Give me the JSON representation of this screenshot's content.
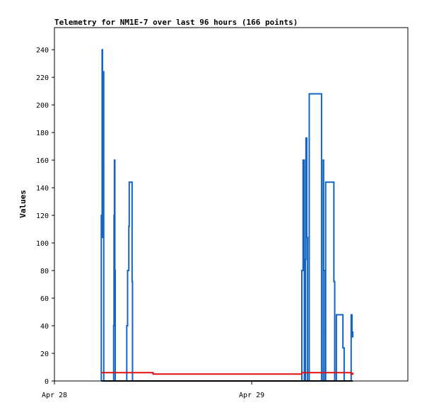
{
  "chart_data": {
    "type": "line",
    "title": "Telemetry for NM1E-7 over last 96 hours (166 points)",
    "xlabel": "",
    "ylabel": "Values",
    "x_ticks": [
      {
        "label": "Apr 28",
        "hours": 0
      },
      {
        "label": "Apr 29",
        "hours": 24
      }
    ],
    "y_ticks": [
      0,
      20,
      40,
      60,
      80,
      100,
      120,
      140,
      160,
      180,
      200,
      220,
      240
    ],
    "xlim_hours": [
      0,
      43
    ],
    "ylim": [
      0,
      256
    ],
    "grid": false,
    "legend": "none",
    "series": [
      {
        "color": "#1565c0",
        "step": true,
        "points": [
          [
            5.7,
            0
          ],
          [
            5.7,
            120
          ],
          [
            5.8,
            240
          ],
          [
            5.85,
            104
          ],
          [
            5.9,
            224
          ],
          [
            6.0,
            0
          ],
          [
            7.2,
            0
          ],
          [
            7.2,
            40
          ],
          [
            7.25,
            120
          ],
          [
            7.3,
            160
          ],
          [
            7.35,
            80
          ],
          [
            7.4,
            0
          ],
          [
            8.8,
            0
          ],
          [
            8.8,
            40
          ],
          [
            8.9,
            80
          ],
          [
            9.05,
            112
          ],
          [
            9.1,
            144
          ],
          [
            9.45,
            72
          ],
          [
            9.5,
            0
          ],
          [
            30.1,
            0
          ],
          [
            30.1,
            80
          ],
          [
            30.25,
            160
          ],
          [
            30.4,
            0
          ],
          [
            30.55,
            88
          ],
          [
            30.6,
            176
          ],
          [
            30.7,
            104
          ],
          [
            30.8,
            0
          ],
          [
            31.0,
            208
          ],
          [
            32.5,
            0
          ],
          [
            32.7,
            160
          ],
          [
            32.75,
            80
          ],
          [
            32.9,
            0
          ],
          [
            33.0,
            144
          ],
          [
            34.0,
            72
          ],
          [
            34.1,
            0
          ],
          [
            34.3,
            48
          ],
          [
            35.1,
            24
          ],
          [
            35.25,
            0
          ],
          [
            36.1,
            48
          ],
          [
            36.2,
            32
          ],
          [
            36.3,
            36
          ]
        ]
      },
      {
        "color": "#e01010",
        "step": true,
        "points": [
          [
            5.7,
            6
          ],
          [
            11.9,
            6
          ],
          [
            12.0,
            5
          ],
          [
            30.0,
            5
          ],
          [
            30.1,
            6
          ],
          [
            36.1,
            6
          ],
          [
            36.1,
            5
          ],
          [
            36.3,
            5
          ],
          [
            36.3,
            6
          ]
        ]
      },
      {
        "color": "#000000",
        "step": true,
        "points": [
          [
            5.7,
            0
          ],
          [
            36.3,
            0
          ]
        ]
      }
    ]
  }
}
